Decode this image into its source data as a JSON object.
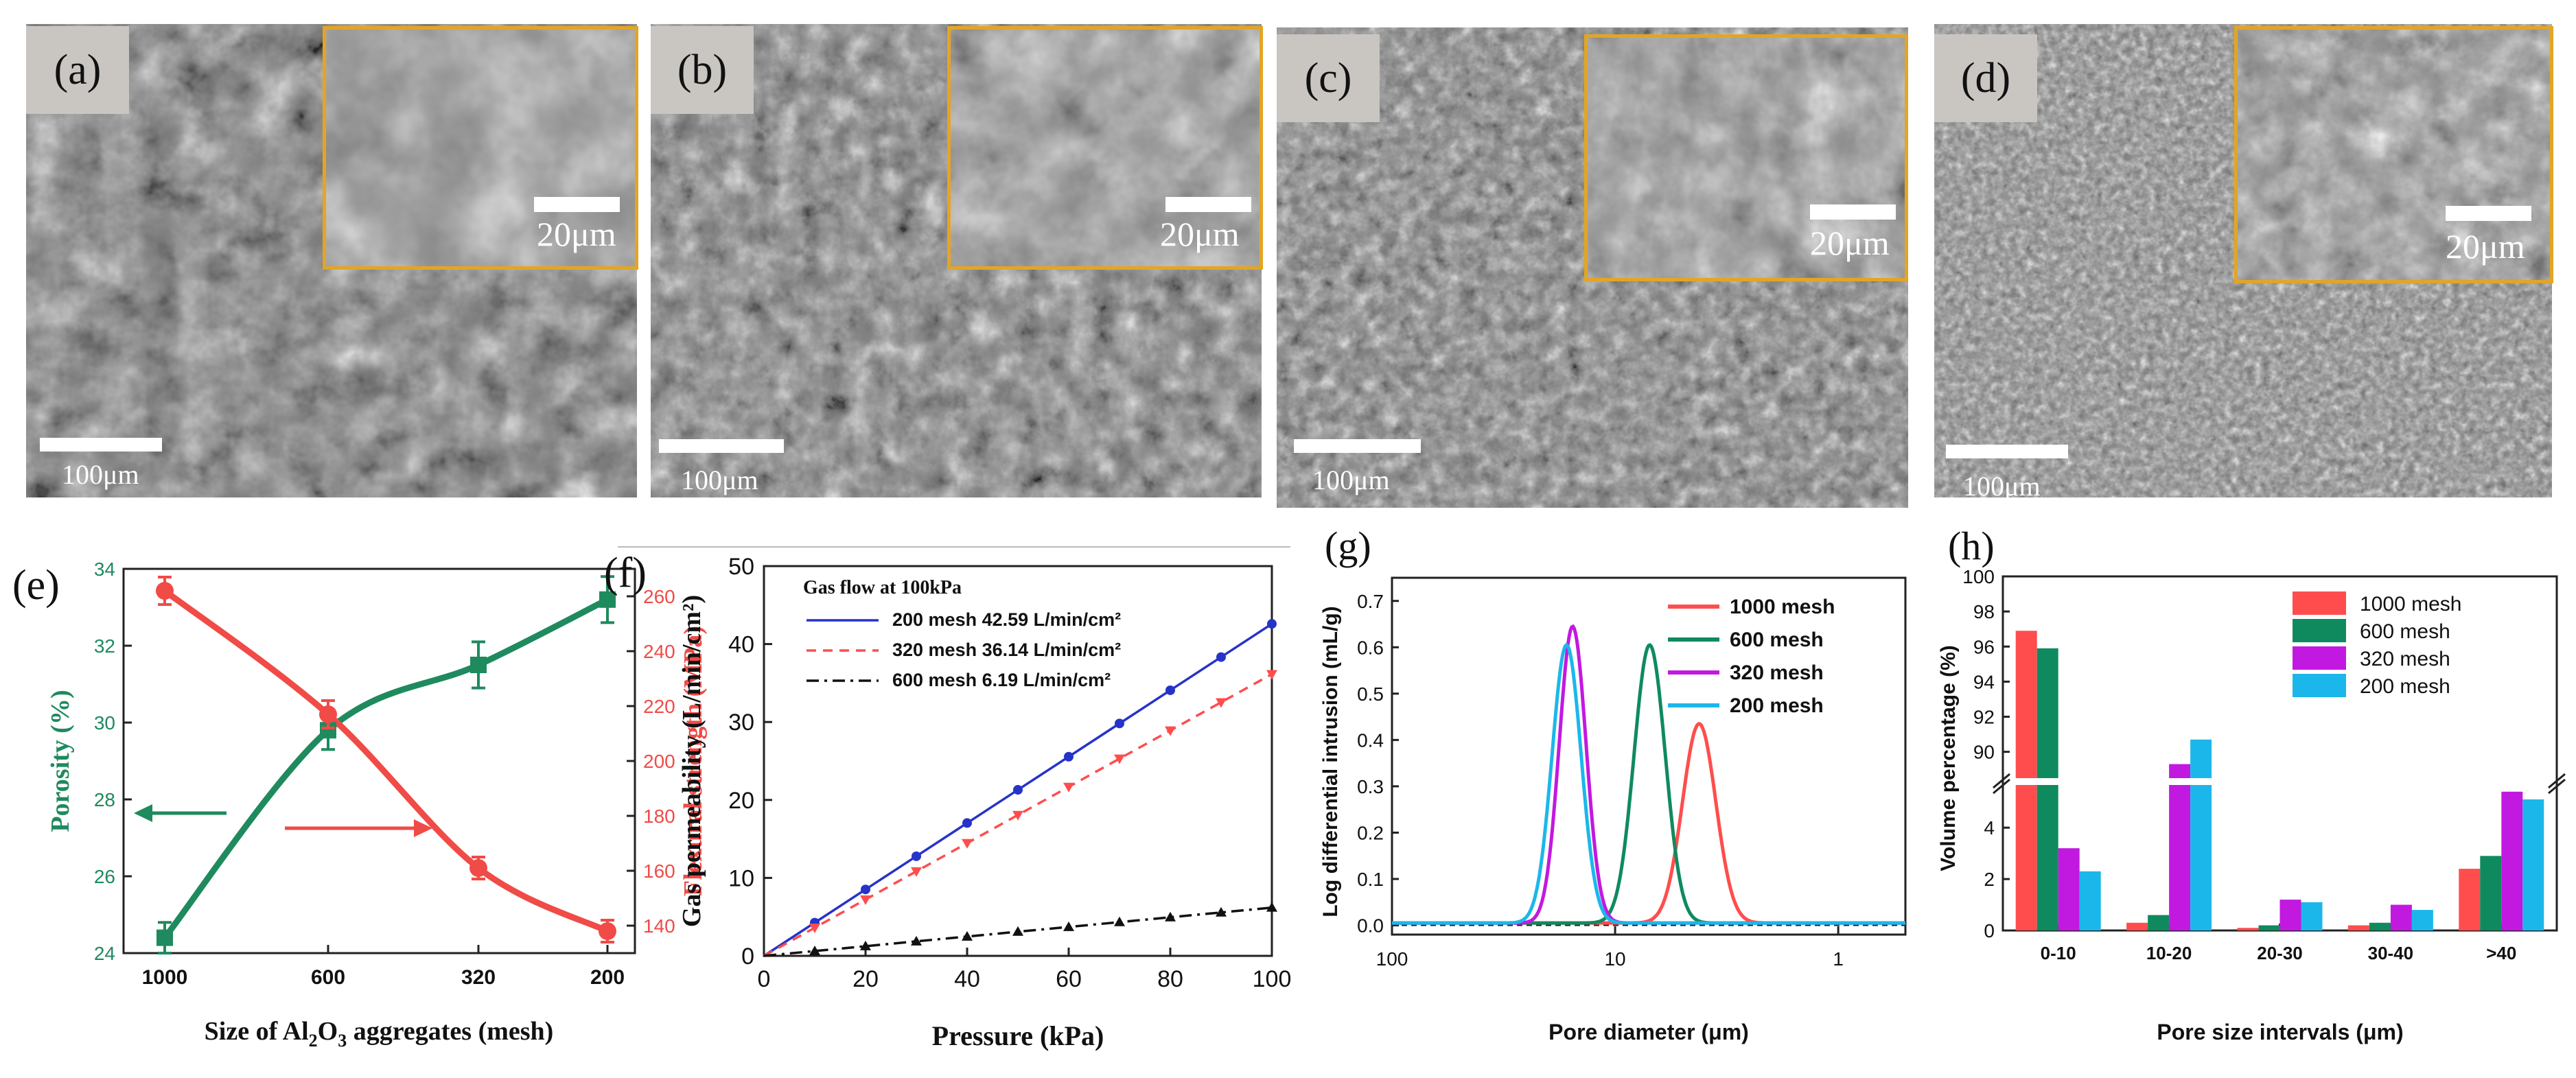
{
  "sem_panels": [
    {
      "letter": "(a)",
      "inset_scale": "20μm",
      "scale": "100μm"
    },
    {
      "letter": "(b)",
      "inset_scale": "20μm",
      "scale": "100μm"
    },
    {
      "letter": "(c)",
      "inset_scale": "20μm",
      "scale": "100μm"
    },
    {
      "letter": "(d)",
      "inset_scale": "20μm",
      "scale": "100μm"
    }
  ],
  "colors": {
    "porosity": "#1f8a5e",
    "strength": "#f04b47",
    "red": "#ff4d4d",
    "green": "#0f8a5f",
    "magenta": "#c219e0",
    "cyan": "#1cb7ea",
    "blue": "#2633c9",
    "inset_border": "#e3a526"
  },
  "chart_data": [
    {
      "panel": "(e)",
      "type": "line",
      "xlabel": "Size of Al2O3 aggregates (mesh)",
      "ylabel_left": "Porosity (%)",
      "ylabel_right": "Flexural strength (MPa)",
      "categories": [
        "1000",
        "600",
        "320",
        "200"
      ],
      "ylim_left": [
        24,
        34
      ],
      "ylim_right": [
        130,
        270
      ],
      "yticks_left": [
        "24",
        "26",
        "28",
        "30",
        "32",
        "34"
      ],
      "yticks_right": [
        "140",
        "160",
        "180",
        "200",
        "220",
        "240",
        "260"
      ],
      "series": [
        {
          "name": "Porosity (%)",
          "axis": "left",
          "values": [
            24.4,
            29.8,
            31.5,
            33.2
          ],
          "errors": [
            0.4,
            0.5,
            0.6,
            0.6
          ]
        },
        {
          "name": "Flexural strength (MPa)",
          "axis": "right",
          "values": [
            262,
            217,
            161,
            138
          ],
          "errors": [
            5,
            5,
            4,
            4
          ]
        }
      ]
    },
    {
      "panel": "(f)",
      "type": "line",
      "title": "Gas flow at 100kPa",
      "xlabel": "Pressure (kPa)",
      "ylabel": "Gas permeability (L/min/cm²)",
      "xlim": [
        0,
        100
      ],
      "ylim": [
        0,
        50
      ],
      "xticks": [
        "0",
        "20",
        "40",
        "60",
        "80",
        "100"
      ],
      "yticks": [
        "0",
        "10",
        "20",
        "30",
        "40",
        "50"
      ],
      "x": [
        0,
        10,
        20,
        30,
        40,
        50,
        60,
        70,
        80,
        90,
        100
      ],
      "series": [
        {
          "name": "200 mesh  42.59 L/min/cm²",
          "values": [
            0,
            4.26,
            8.52,
            12.78,
            17.04,
            21.3,
            25.55,
            29.81,
            34.07,
            38.33,
            42.59
          ]
        },
        {
          "name": "320 mesh  36.14 L/min/cm²",
          "values": [
            0,
            3.61,
            7.23,
            10.84,
            14.46,
            18.07,
            21.68,
            25.3,
            28.91,
            32.53,
            36.14
          ]
        },
        {
          "name": "600 mesh  6.19 L/min/cm²",
          "values": [
            0,
            0.62,
            1.24,
            1.86,
            2.48,
            3.1,
            3.71,
            4.33,
            4.95,
            5.57,
            6.19
          ]
        }
      ]
    },
    {
      "panel": "(g)",
      "type": "line",
      "xlabel": "Pore diameter (μm)",
      "ylabel": "Log differential intrusion (mL/g)",
      "xscale": "log-reversed",
      "xlim": [
        100,
        0.5
      ],
      "ylim": [
        -0.02,
        0.75
      ],
      "xticks": [
        "100",
        "10",
        "1"
      ],
      "yticks": [
        "0.0",
        "0.1",
        "0.2",
        "0.3",
        "0.4",
        "0.5",
        "0.6",
        "0.7"
      ],
      "series": [
        {
          "name": "1000 mesh",
          "peak_diameter": 4.2,
          "peak_value": 0.43
        },
        {
          "name": "600 mesh",
          "peak_diameter": 7.0,
          "peak_value": 0.6
        },
        {
          "name": "320 mesh",
          "peak_diameter": 15.5,
          "peak_value": 0.64
        },
        {
          "name": "200 mesh",
          "peak_diameter": 16.5,
          "peak_value": 0.6
        }
      ]
    },
    {
      "panel": "(h)",
      "type": "bar",
      "xlabel": "Pore size intervals (μm)",
      "ylabel": "Volume percentage (%)",
      "categories": [
        "0-10",
        "10-20",
        "20-30",
        "30-40",
        ">40"
      ],
      "yticks_bottom": [
        "0",
        "2",
        "4"
      ],
      "yticks_top": [
        "90",
        "92",
        "94",
        "96",
        "98",
        "100"
      ],
      "axis_break": [
        5.5,
        88.5
      ],
      "series": [
        {
          "name": "1000 mesh",
          "values": [
            96.9,
            0.3,
            0.1,
            0.2,
            2.4
          ]
        },
        {
          "name": "600 mesh",
          "values": [
            95.9,
            0.6,
            0.2,
            0.3,
            2.9
          ]
        },
        {
          "name": "320 mesh",
          "values": [
            3.2,
            89.3,
            1.2,
            1.0,
            5.4
          ]
        },
        {
          "name": "200 mesh",
          "values": [
            2.3,
            90.7,
            1.1,
            0.8,
            5.1
          ]
        }
      ]
    }
  ]
}
